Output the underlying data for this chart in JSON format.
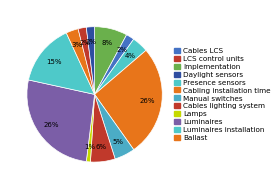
{
  "labels": [
    "Implementation",
    "Cables LCS",
    "Presence sensors",
    "Cabling installation time",
    "Manual switches",
    "Cables lighting system",
    "Lamps",
    "Luminaires",
    "Luminaires installation",
    "Ballast",
    "LCS control units",
    "Daylight sensors"
  ],
  "values": [
    8,
    2,
    4,
    27,
    5,
    6,
    1,
    27,
    15,
    3,
    2,
    2
  ],
  "colors": [
    "#6ab04c",
    "#4472c4",
    "#4ec9c9",
    "#e8751a",
    "#4bacc6",
    "#c0392b",
    "#c5d900",
    "#7b5ea7",
    "#4ec9c9",
    "#e8751a",
    "#c0392b",
    "#2e4da0"
  ],
  "legend_order_labels": [
    "Cables LCS",
    "LCS control units",
    "Implementation",
    "Daylight sensors",
    "Presence sensors",
    "Cabling installation time",
    "Manual switches",
    "Cables lighting system",
    "Lamps",
    "Luminaires",
    "Luminaires installation",
    "Ballast"
  ],
  "legend_order_colors": [
    "#4472c4",
    "#c0392b",
    "#6ab04c",
    "#2e4da0",
    "#4ec9c9",
    "#e8751a",
    "#4bacc6",
    "#c0392b",
    "#c5d900",
    "#7b5ea7",
    "#4ec9c9",
    "#e8751a"
  ],
  "startangle": 90,
  "pct_fontsize": 5.0,
  "legend_fontsize": 5.2,
  "background_color": "#ffffff"
}
